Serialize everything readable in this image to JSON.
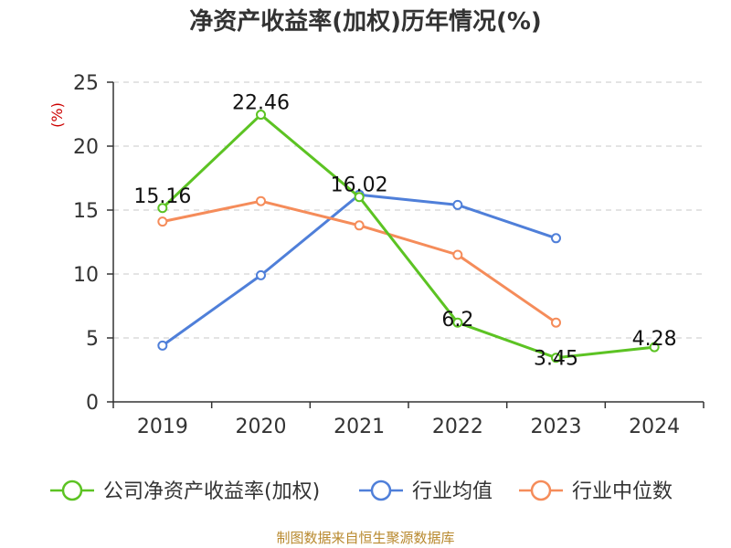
{
  "chart_data": {
    "type": "line",
    "title": "净资产收益率(加权)历年情况(%)",
    "ylabel": "(%)",
    "xlabel": "",
    "categories": [
      "2019",
      "2020",
      "2021",
      "2022",
      "2023",
      "2024"
    ],
    "ylim": [
      0,
      25
    ],
    "yticks": [
      0,
      5,
      10,
      15,
      20,
      25
    ],
    "grid": true,
    "legend_position": "bottom",
    "series": [
      {
        "name": "公司净资产收益率(加权)",
        "color": "#5cc323",
        "values": [
          15.16,
          22.46,
          16.02,
          6.2,
          3.45,
          4.28
        ],
        "labels": [
          "15.16",
          "22.46",
          "16.02",
          "6.2",
          "3.45",
          "4.28"
        ]
      },
      {
        "name": "行业均值",
        "color": "#4f7fd9",
        "values": [
          4.4,
          9.9,
          16.2,
          15.4,
          12.8,
          null
        ]
      },
      {
        "name": "行业中位数",
        "color": "#f58c5a",
        "values": [
          14.1,
          15.7,
          13.8,
          11.5,
          6.2,
          null
        ]
      }
    ],
    "source": "制图数据来自恒生聚源数据库"
  }
}
